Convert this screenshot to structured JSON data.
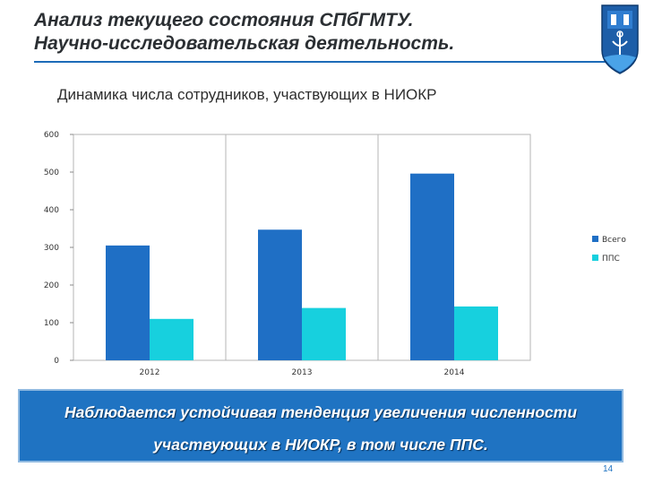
{
  "slide": {
    "title_lines": [
      "Анализ текущего состояния СПбГМТУ.",
      "Научно-исследовательская деятельность."
    ],
    "page_number": "14",
    "accent_color": "#1d6bb8",
    "logo_text": "СПбГМТУ"
  },
  "chart_data": {
    "type": "bar",
    "title": "Динамика числа сотрудников, участвующих в НИОКР",
    "categories": [
      "2012",
      "2013",
      "2014"
    ],
    "series": [
      {
        "name": "Всего",
        "values": [
          305,
          347,
          496
        ],
        "color": "#1f6fc5"
      },
      {
        "name": "ППС",
        "values": [
          110,
          139,
          143
        ],
        "color": "#17d0de"
      }
    ],
    "ylim": [
      0,
      600
    ],
    "yticks": [
      0,
      100,
      200,
      300,
      400,
      500,
      600
    ],
    "xlabel": "",
    "ylabel": "",
    "grid": "vertical category separators",
    "legend_position": "right"
  },
  "banner": {
    "lines": [
      "Наблюдается устойчивая тенденция увеличения численности",
      "участвующих в НИОКР, в том числе ППС."
    ],
    "background": "#1f73c2"
  }
}
